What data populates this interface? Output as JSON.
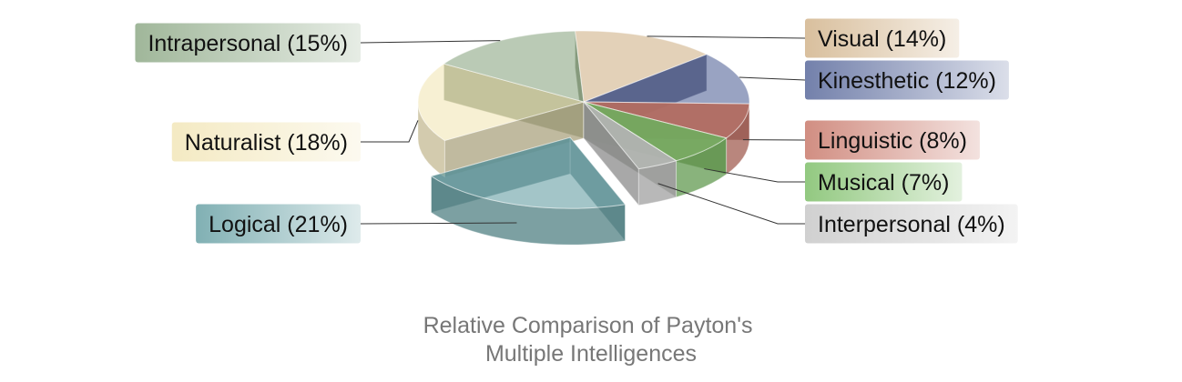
{
  "chart_data": {
    "type": "pie",
    "title_lines": [
      "Relative Comparison of Payton's",
      "Multiple Intelligences"
    ],
    "slices": [
      {
        "category": "Visual",
        "value": 14,
        "label": "Visual (14%)",
        "color": "#d2b48c"
      },
      {
        "category": "Kinesthetic",
        "value": 12,
        "label": "Kinesthetic (12%)",
        "color": "#5a6a9c"
      },
      {
        "category": "Linguistic",
        "value": 8,
        "label": "Linguistic (8%)",
        "color": "#c97a6c"
      },
      {
        "category": "Musical",
        "value": 7,
        "label": "Musical (7%)",
        "color": "#7fbf6a"
      },
      {
        "category": "Interpersonal",
        "value": 4,
        "label": "Interpersonal (4%)",
        "color": "#c8c8c8"
      },
      {
        "category": "Logical",
        "value": 21,
        "label": "Logical (21%)",
        "color": "#6aa2a6"
      },
      {
        "category": "Naturalist",
        "value": 18,
        "label": "Naturalist (18%)",
        "color": "#f2e6b8"
      },
      {
        "category": "Intrapersonal",
        "value": 15,
        "label": "Intrapersonal (15%)",
        "color": "#8faa88"
      }
    ],
    "exploded": [
      "Logical"
    ],
    "style": "3d-pie",
    "legend": "none"
  }
}
